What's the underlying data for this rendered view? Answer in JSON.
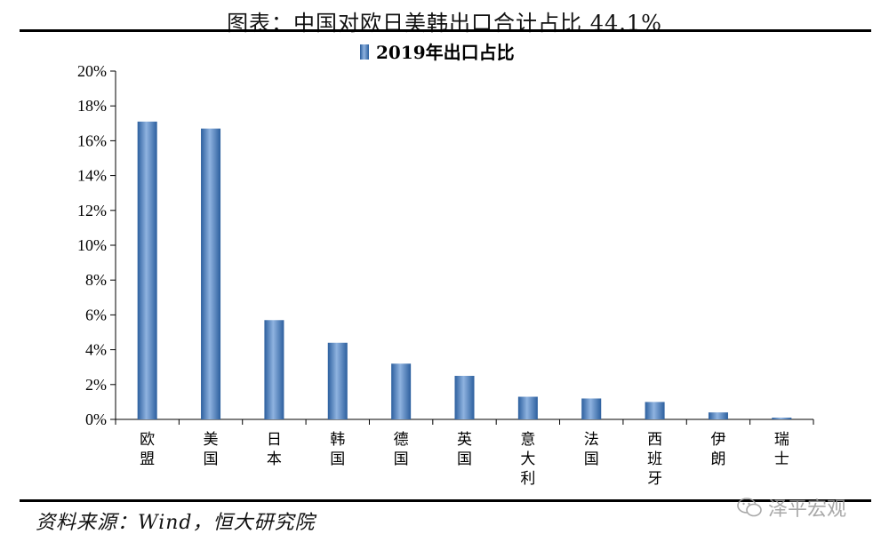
{
  "header": {
    "title": "图表：中国对欧日美韩出口合计占比 44.1%"
  },
  "footer": {
    "source": "资料来源：Wind，恒大研究院"
  },
  "watermark": {
    "text": "泽平宏观",
    "icon": "wechat-icon"
  },
  "chart_data": {
    "type": "bar",
    "legend": "2019年出口占比",
    "legend_position": "top-center",
    "categories": [
      "欧盟",
      "美国",
      "日本",
      "韩国",
      "德国",
      "英国",
      "意大利",
      "法国",
      "西班牙",
      "伊朗",
      "瑞士"
    ],
    "series": [
      {
        "name": "2019年出口占比",
        "values": [
          17.1,
          16.7,
          5.7,
          4.4,
          3.2,
          2.5,
          1.3,
          1.2,
          1.0,
          0.4,
          0.1
        ]
      }
    ],
    "ylim": [
      0,
      20
    ],
    "yticks": [
      "0%",
      "2%",
      "4%",
      "6%",
      "8%",
      "10%",
      "12%",
      "14%",
      "16%",
      "18%",
      "20%"
    ],
    "unit": "%",
    "grid": false,
    "bar_color": "#4a7fc1"
  }
}
